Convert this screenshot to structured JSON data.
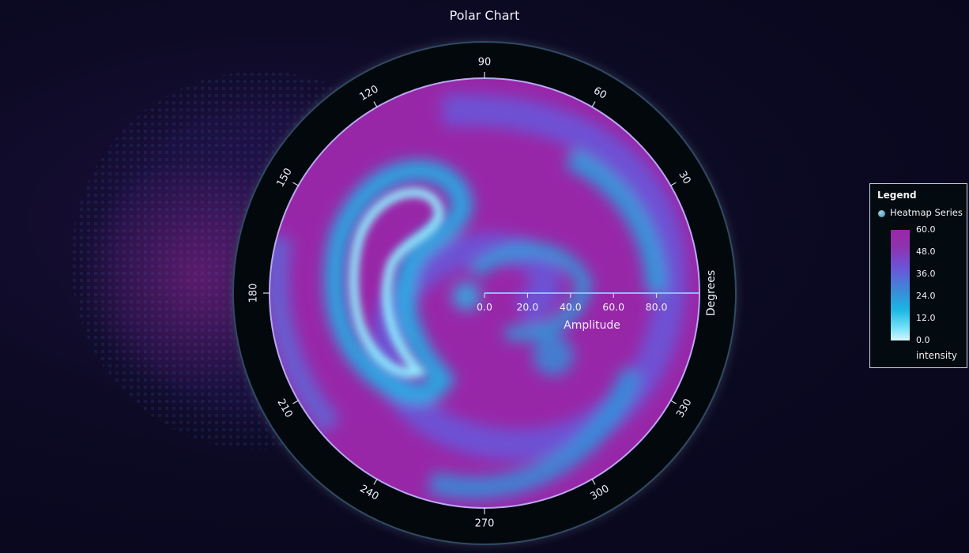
{
  "chart_data": {
    "type": "heatmap",
    "subtype": "polar",
    "title": "Polar Chart",
    "angular_axis": {
      "title": "Degrees",
      "ticks": [
        "90",
        "60",
        "30",
        "330",
        "300",
        "270",
        "240",
        "210",
        "180",
        "150",
        "120"
      ],
      "tick_angles": [
        90,
        60,
        30,
        330,
        300,
        270,
        240,
        210,
        180,
        150,
        120
      ],
      "range": [
        0,
        360
      ]
    },
    "radial_axis": {
      "title": "Amplitude",
      "ticks": [
        "0.0",
        "20.0",
        "40.0",
        "60.0",
        "80.0"
      ],
      "tick_values": [
        0,
        20,
        40,
        60,
        80
      ],
      "range": [
        0,
        100
      ]
    },
    "series": [
      {
        "name": "Heatmap Series",
        "value_name": "intensity"
      }
    ],
    "color_scale": {
      "min": 0,
      "max": 60,
      "ticks": [
        "60.0",
        "48.0",
        "36.0",
        "24.0",
        "12.0",
        "0.0"
      ],
      "colors": [
        "#9a27a6",
        "#6b55d8",
        "#19b6e4",
        "#d6f6ff"
      ]
    }
  },
  "legend": {
    "title": "Legend",
    "series_label": "Heatmap Series",
    "unit": "intensity"
  }
}
